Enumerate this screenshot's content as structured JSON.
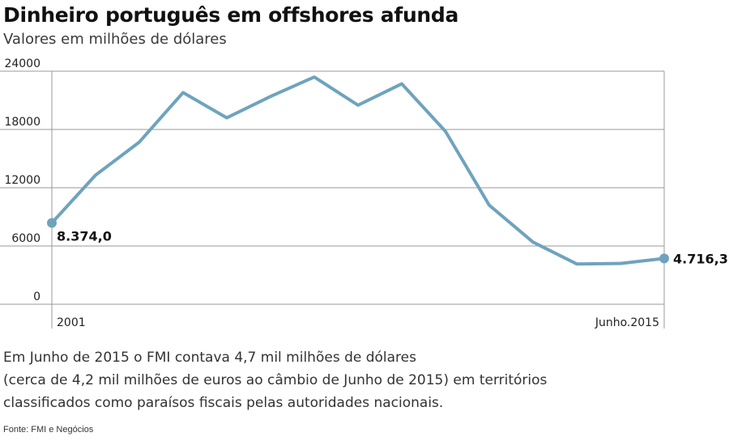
{
  "header": {
    "title": "Dinheiro português  em offshores afunda",
    "subtitle": "Valores em milhões de dólares"
  },
  "chart_data": {
    "type": "line",
    "title": "Dinheiro português  em offshores afunda",
    "subtitle": "Valores em milhões de dólares",
    "xlabel": "",
    "ylabel": "",
    "x_labels": {
      "start": "2001",
      "end": "Junho.2015"
    },
    "ylim": [
      0,
      24000
    ],
    "yticks": [
      0,
      6000,
      12000,
      18000,
      24000
    ],
    "ytick_labels": [
      "0",
      "6000",
      "12000",
      "18000",
      "24000"
    ],
    "grid": true,
    "line_color": "#6fa3bd",
    "series": [
      {
        "values": [
          8374,
          13300,
          16700,
          21800,
          19200,
          21400,
          23400,
          20500,
          22700,
          17800,
          10200,
          6400,
          4150,
          4200,
          4716.3
        ]
      }
    ],
    "annotations": {
      "start_value": "8.374,0",
      "end_value": "4.716,3"
    }
  },
  "footer": {
    "note_lines": [
      "Em Junho de 2015 o FMI contava 4,7 mil milhões de dólares",
      "(cerca de 4,2 mil milhões de euros ao câmbio de Junho de 2015) em territórios",
      "classificados como paraísos fiscais pelas autoridades nacionais."
    ],
    "source": "Fonte: FMI e Negócios"
  }
}
